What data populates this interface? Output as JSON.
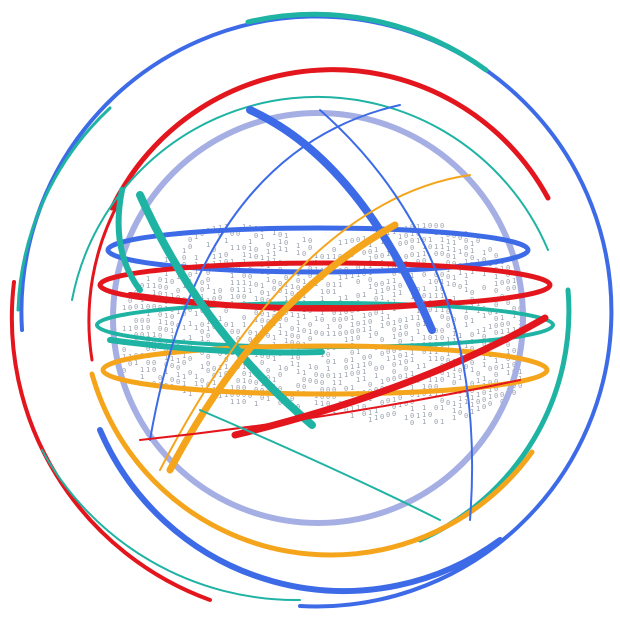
{
  "colors": {
    "blue": "#3d6be8",
    "red": "#e3161e",
    "teal": "#1fb3a4",
    "orange": "#f5a51c",
    "lavender": "#a6afe4",
    "digits": "#9aa0ad",
    "background": "#ffffff"
  },
  "digit_glyphs": [
    "0",
    "1"
  ]
}
